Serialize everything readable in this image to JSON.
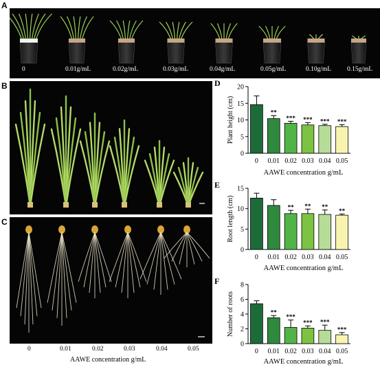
{
  "panels": {
    "a": {
      "letter": "A",
      "labels": [
        "0",
        "0.01g/mL",
        "0.02g/mL",
        "0.03g/mL",
        "0.04g/mL",
        "0.05g/mL",
        "0.10g/mL",
        "0.15g/mL"
      ]
    },
    "b": {
      "letter": "B"
    },
    "c": {
      "letter": "C",
      "labels": [
        "0",
        "0.01",
        "0.02",
        "0.03",
        "0.04",
        "0.05"
      ],
      "xlabel": "AAWE concentration g/mL"
    }
  },
  "colors": {
    "bars": [
      "#1e6b3a",
      "#2f8a3e",
      "#52b447",
      "#7dc242",
      "#b7dc98",
      "#f8f4b0"
    ]
  },
  "chart_data": [
    {
      "letter": "D",
      "type": "bar",
      "categories": [
        "0",
        "0.01",
        "0.02",
        "0.03",
        "0.04",
        "0.05"
      ],
      "values": [
        14.6,
        10.4,
        9.0,
        8.5,
        8.3,
        8.0
      ],
      "errors": [
        2.6,
        0.9,
        0.6,
        0.7,
        0.4,
        0.6
      ],
      "significance": [
        "",
        "**",
        "***",
        "***",
        "***",
        "***"
      ],
      "ylabel": "Plant height (cm)",
      "xlabel": "AAWE concentration g/mL",
      "ylim": [
        0,
        20
      ],
      "yticks": [
        "0",
        "5",
        "10",
        "15",
        "20"
      ]
    },
    {
      "letter": "E",
      "type": "bar",
      "categories": [
        "0",
        "0.01",
        "0.02",
        "0.03",
        "0.04",
        "0.05"
      ],
      "values": [
        12.6,
        10.8,
        8.8,
        8.8,
        8.6,
        8.4
      ],
      "errors": [
        1.2,
        1.4,
        0.8,
        1.1,
        1.1,
        0.3
      ],
      "significance": [
        "",
        "",
        "**",
        "**",
        "**",
        "**"
      ],
      "ylabel": "Root length (cm)",
      "xlabel": "AAWE concentration g/mL",
      "ylim": [
        0,
        15
      ],
      "yticks": [
        "0",
        "5",
        "10",
        "15"
      ]
    },
    {
      "letter": "F",
      "type": "bar",
      "categories": [
        "0",
        "0.01",
        "0.02",
        "0.03",
        "0.04",
        "0.05"
      ],
      "values": [
        5.4,
        3.5,
        2.2,
        2.1,
        1.8,
        1.2
      ],
      "errors": [
        0.4,
        0.3,
        1.0,
        0.3,
        0.7,
        0.3
      ],
      "significance": [
        "",
        "**",
        "***",
        "***",
        "***",
        "***"
      ],
      "ylabel": "Number of roots",
      "xlabel": "AAWE concentration g/mL",
      "ylim": [
        0,
        8
      ],
      "yticks": [
        "0",
        "2",
        "4",
        "6",
        "8"
      ]
    }
  ]
}
